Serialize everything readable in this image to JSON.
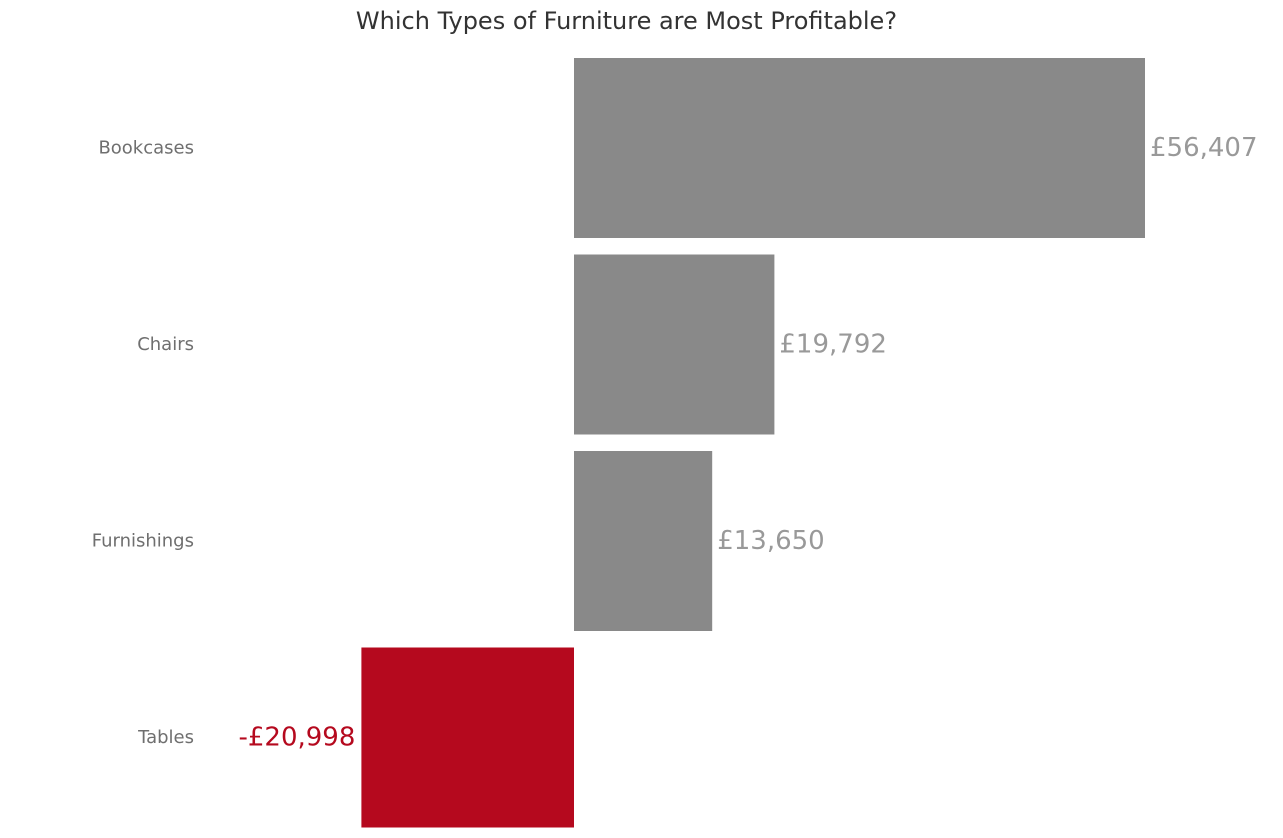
{
  "chart_data": {
    "type": "bar",
    "orientation": "horizontal",
    "title": "Which Types of Furniture are Most Profitable?",
    "categories": [
      "Bookcases",
      "Chairs",
      "Furnishings",
      "Tables"
    ],
    "values": [
      56407,
      19792,
      13650,
      -20998
    ],
    "value_labels": [
      "£56,407",
      "£19,792",
      "£13,650",
      "-£20,998"
    ],
    "xlim": [
      -21000,
      57000
    ],
    "grid": false,
    "xlabel": "",
    "ylabel": "",
    "colors": {
      "positive": "#898989",
      "negative": "#b5091e",
      "positive_label": "#999999",
      "negative_label": "#b5091e"
    }
  }
}
